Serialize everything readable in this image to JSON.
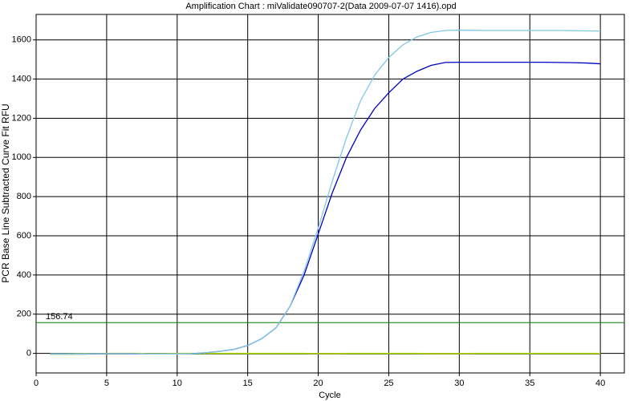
{
  "chart_data": {
    "type": "line",
    "title": "Amplification Chart : miValidate090707-2(Data 2009-07-07 1416).opd",
    "x_label": "Cycle",
    "y_label": "PCR Base Line Subtracted Curve Fit RFU",
    "x": [
      1,
      2,
      3,
      4,
      5,
      6,
      7,
      8,
      9,
      10,
      11,
      12,
      13,
      14,
      15,
      16,
      17,
      18,
      19,
      20,
      21,
      22,
      23,
      24,
      25,
      26,
      27,
      28,
      29,
      30,
      31,
      32,
      33,
      34,
      35,
      36,
      37,
      38,
      39,
      40
    ],
    "series": [
      {
        "color": "#80c8e8",
        "values": [
          -3,
          -3,
          -3,
          -2,
          -2,
          -2,
          -2,
          -3,
          -3,
          -3,
          -2,
          3,
          10,
          20,
          40,
          75,
          130,
          240,
          420,
          640,
          880,
          1100,
          1290,
          1420,
          1510,
          1575,
          1615,
          1638,
          1648,
          1650,
          1649,
          1648,
          1648,
          1648,
          1648,
          1648,
          1648,
          1647,
          1646,
          1645
        ]
      },
      {
        "color": "#0000c0",
        "values": [
          -3,
          -3,
          -3,
          -2,
          -2,
          -2,
          -2,
          -3,
          -3,
          -3,
          -2,
          3,
          10,
          20,
          40,
          75,
          130,
          240,
          400,
          610,
          820,
          1000,
          1140,
          1250,
          1330,
          1400,
          1440,
          1470,
          1485,
          1486,
          1486,
          1486,
          1486,
          1486,
          1486,
          1486,
          1485,
          1484,
          1482,
          1478
        ]
      },
      {
        "color": "#c8d800",
        "values": [
          -2,
          -2,
          -1,
          -1,
          0,
          0,
          0,
          -1,
          -1,
          0,
          0,
          0,
          0,
          0,
          0,
          0,
          0,
          0,
          0,
          -1,
          -1,
          0,
          0,
          0,
          0,
          0,
          0,
          -1,
          -1,
          -1,
          0,
          0,
          0,
          0,
          0,
          0,
          0,
          0,
          0,
          0
        ]
      },
      {
        "color": "#408040",
        "values": [
          -4,
          -4,
          -4,
          -3,
          -3,
          -3,
          -3,
          -3,
          -3,
          -3,
          -3,
          -3,
          -3,
          -3,
          -3,
          -3,
          -3,
          -3,
          -3,
          -3,
          -3,
          -3,
          -3,
          -3,
          -3,
          -3,
          -3,
          -3,
          -3,
          -3,
          -3,
          -3,
          -3,
          -3,
          -3,
          -3,
          -3,
          -3,
          -3,
          -3
        ]
      }
    ],
    "threshold": 156.74,
    "threshold_color": "#008000",
    "xlim": [
      0,
      41.7
    ],
    "ylim": [
      -100,
      1730
    ],
    "xticks": [
      0,
      5,
      10,
      15,
      20,
      25,
      30,
      35,
      40
    ],
    "yticks": [
      0,
      200,
      400,
      600,
      800,
      1000,
      1200,
      1400,
      1600
    ],
    "grid": true
  }
}
